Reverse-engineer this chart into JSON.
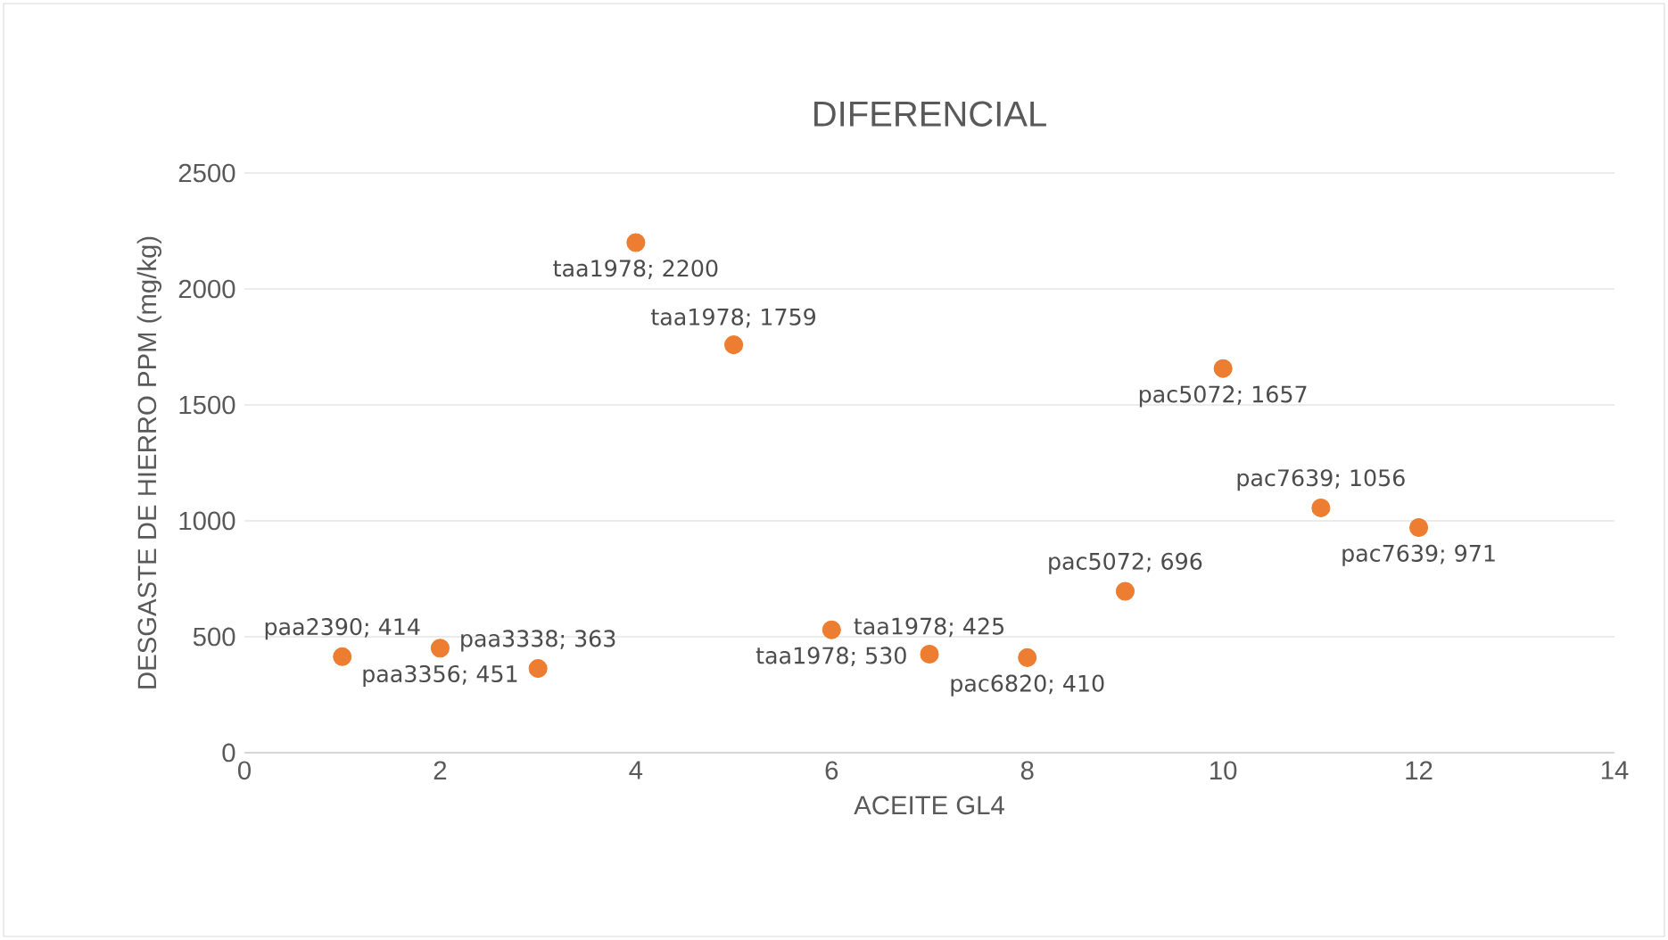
{
  "chart_data": {
    "type": "scatter",
    "title": "DIFERENCIAL",
    "xlabel": "ACEITE GL4",
    "ylabel": "DESGASTE DE HIERRO PPM (mg/kg)",
    "x": [
      1,
      2,
      3,
      4,
      5,
      6,
      7,
      8,
      9,
      10,
      11,
      12
    ],
    "values": [
      414,
      451,
      363,
      2200,
      1759,
      530,
      425,
      410,
      696,
      1657,
      1056,
      971
    ],
    "value_labels": [
      "paa2390; 414",
      "paa3356; 451",
      "paa3338; 363",
      "taa1978; 2200",
      "taa1978; 1759",
      "taa1978; 530",
      "taa1978; 425",
      "pac6820; 410",
      "pac5072; 696",
      "pac5072; 1657",
      "pac7639; 1056",
      "pac7639; 971"
    ],
    "color": "#ed7d31",
    "marker": "circle",
    "grid": "y",
    "xlim": [
      0,
      14
    ],
    "xticks": [
      0,
      2,
      4,
      6,
      8,
      10,
      12,
      14
    ],
    "ylim": [
      0,
      2500
    ],
    "yticks": [
      0,
      500,
      1000,
      1500,
      2000,
      2500
    ]
  }
}
